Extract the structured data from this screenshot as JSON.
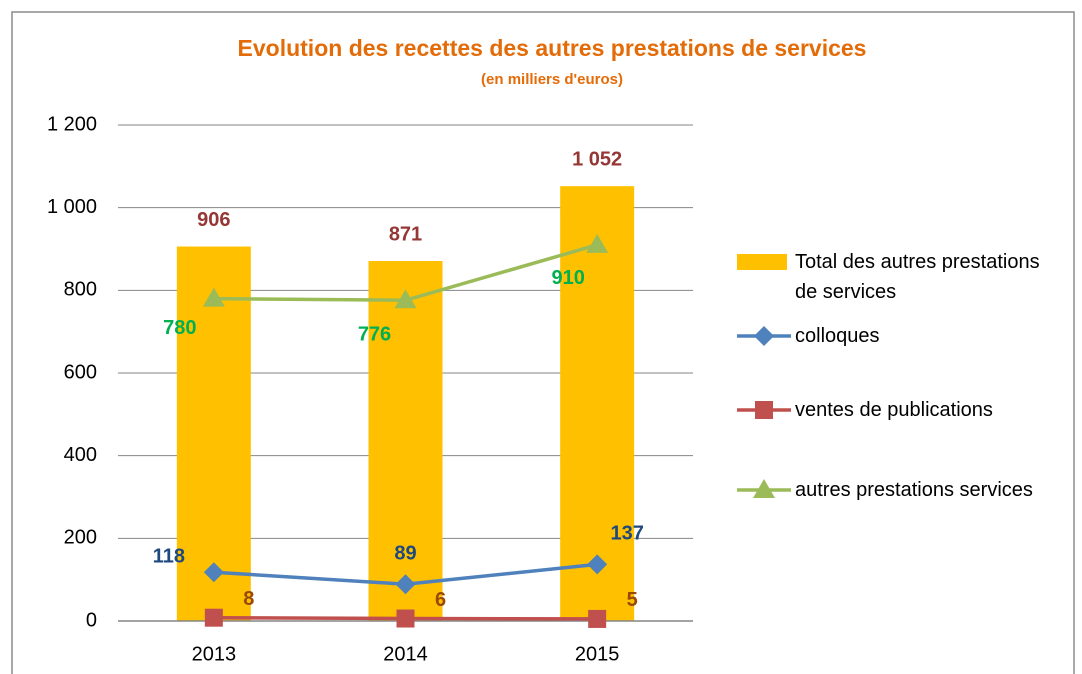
{
  "chart_data": {
    "type": "bar",
    "title": "Evolution des recettes des autres prestations de services",
    "subtitle": "(en milliers d'euros)",
    "categories": [
      "2013",
      "2014",
      "2015"
    ],
    "series": [
      {
        "name": "Total des autres prestations de services",
        "type": "bar",
        "color": "#FFC000",
        "label_color": "#953735",
        "values": [
          906,
          871,
          1052
        ],
        "value_labels": [
          "906",
          "871",
          "1 052"
        ]
      },
      {
        "name": "colloques",
        "type": "line",
        "marker": "diamond",
        "color": "#4F81BD",
        "label_color": "#1F497D",
        "values": [
          118,
          89,
          137
        ]
      },
      {
        "name": "ventes de publications",
        "type": "line",
        "marker": "square",
        "color": "#C0504D",
        "label_color": "#984807",
        "values": [
          8,
          6,
          5
        ]
      },
      {
        "name": "autres prestations services",
        "type": "line",
        "marker": "triangle",
        "color": "#9BBB59",
        "label_color": "#00B050",
        "values": [
          780,
          776,
          910
        ]
      }
    ],
    "ylim": [
      0,
      1200
    ],
    "yticks": [
      0,
      200,
      400,
      600,
      800,
      {
        "value": 1000,
        "label": "1 000"
      },
      {
        "value": 1200,
        "label": "1 200"
      }
    ],
    "grid": true,
    "legend": "right"
  }
}
